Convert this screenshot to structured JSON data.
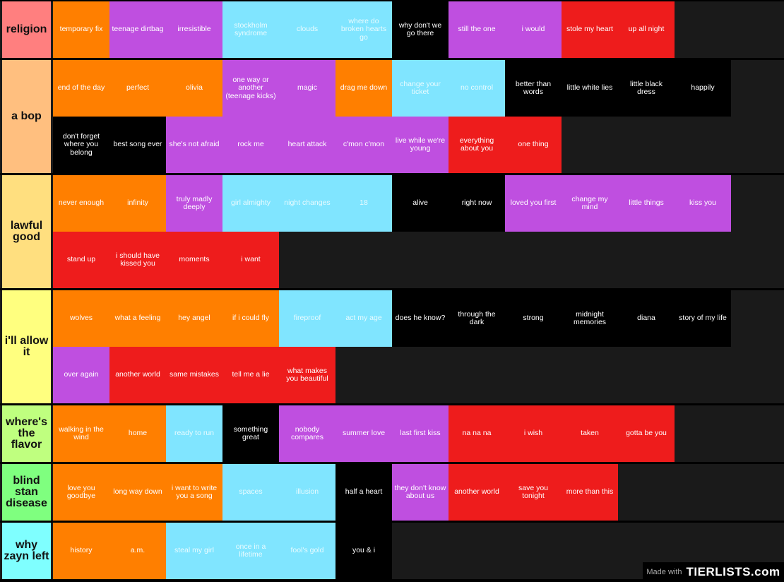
{
  "colors": {
    "orange": "#ff7f00",
    "purple": "#bf4fe0",
    "cyan": "#80e5ff",
    "black": "#000000",
    "red": "#ee1c1c",
    "row_bg": "#1a1a1a"
  },
  "tiers": [
    {
      "label": "religion",
      "color": "#ff7f7f",
      "items": [
        {
          "text": "temporary fix",
          "color": "orange"
        },
        {
          "text": "teenage dirtbag",
          "color": "purple"
        },
        {
          "text": "irresistible",
          "color": "purple"
        },
        {
          "text": "stockholm syndrome",
          "color": "cyan"
        },
        {
          "text": "clouds",
          "color": "cyan"
        },
        {
          "text": "where do broken hearts go",
          "color": "cyan"
        },
        {
          "text": "why don't we go there",
          "color": "black"
        },
        {
          "text": "still the one",
          "color": "purple"
        },
        {
          "text": "i would",
          "color": "purple"
        },
        {
          "text": "stole my heart",
          "color": "red"
        },
        {
          "text": "up all night",
          "color": "red"
        }
      ]
    },
    {
      "label": "a bop",
      "color": "#ffbf7f",
      "items": [
        {
          "text": "end of the day",
          "color": "orange"
        },
        {
          "text": "perfect",
          "color": "orange"
        },
        {
          "text": "olivia",
          "color": "orange"
        },
        {
          "text": "one way or another (teenage kicks)",
          "color": "purple"
        },
        {
          "text": "magic",
          "color": "purple"
        },
        {
          "text": "drag me down",
          "color": "orange"
        },
        {
          "text": "change your ticket",
          "color": "cyan"
        },
        {
          "text": "no control",
          "color": "cyan"
        },
        {
          "text": "better than words",
          "color": "black"
        },
        {
          "text": "little white lies",
          "color": "black"
        },
        {
          "text": "little black dress",
          "color": "black"
        },
        {
          "text": "happily",
          "color": "black"
        },
        {
          "text": "don't forget where you belong",
          "color": "black"
        },
        {
          "text": "best song ever",
          "color": "black"
        },
        {
          "text": "she's not afraid",
          "color": "purple"
        },
        {
          "text": "rock me",
          "color": "purple"
        },
        {
          "text": "heart attack",
          "color": "purple"
        },
        {
          "text": "c'mon c'mon",
          "color": "purple"
        },
        {
          "text": "live while we're young",
          "color": "purple"
        },
        {
          "text": "everything about you",
          "color": "red"
        },
        {
          "text": "one thing",
          "color": "red"
        }
      ]
    },
    {
      "label": "lawful good",
      "color": "#ffdf7f",
      "items": [
        {
          "text": "never enough",
          "color": "orange"
        },
        {
          "text": "infinity",
          "color": "orange"
        },
        {
          "text": "truly madly deeply",
          "color": "purple"
        },
        {
          "text": "girl almighty",
          "color": "cyan"
        },
        {
          "text": "night changes",
          "color": "cyan"
        },
        {
          "text": "18",
          "color": "cyan"
        },
        {
          "text": "alive",
          "color": "black"
        },
        {
          "text": "right now",
          "color": "black"
        },
        {
          "text": "loved you first",
          "color": "purple"
        },
        {
          "text": "change my mind",
          "color": "purple"
        },
        {
          "text": "little things",
          "color": "purple"
        },
        {
          "text": "kiss you",
          "color": "purple"
        },
        {
          "text": "stand up",
          "color": "red"
        },
        {
          "text": "i should have kissed you",
          "color": "red"
        },
        {
          "text": "moments",
          "color": "red"
        },
        {
          "text": "i want",
          "color": "red"
        }
      ]
    },
    {
      "label": "i'll allow it",
      "color": "#ffff7f",
      "items": [
        {
          "text": "wolves",
          "color": "orange"
        },
        {
          "text": "what a feeling",
          "color": "orange"
        },
        {
          "text": "hey angel",
          "color": "orange"
        },
        {
          "text": "if i could fly",
          "color": "orange"
        },
        {
          "text": "fireproof",
          "color": "cyan"
        },
        {
          "text": "act my age",
          "color": "cyan"
        },
        {
          "text": "does he know?",
          "color": "black"
        },
        {
          "text": "through the dark",
          "color": "black"
        },
        {
          "text": "strong",
          "color": "black"
        },
        {
          "text": "midnight memories",
          "color": "black"
        },
        {
          "text": "diana",
          "color": "black"
        },
        {
          "text": "story of my life",
          "color": "black"
        },
        {
          "text": "over again",
          "color": "purple"
        },
        {
          "text": "another world",
          "color": "red"
        },
        {
          "text": "same mistakes",
          "color": "red"
        },
        {
          "text": "tell me a lie",
          "color": "red"
        },
        {
          "text": "what makes you beautiful",
          "color": "red"
        }
      ]
    },
    {
      "label": "where's the flavor",
      "color": "#bfff7f",
      "items": [
        {
          "text": "walking in the wind",
          "color": "orange"
        },
        {
          "text": "home",
          "color": "orange"
        },
        {
          "text": "ready to run",
          "color": "cyan"
        },
        {
          "text": "something great",
          "color": "black"
        },
        {
          "text": "nobody compares",
          "color": "purple"
        },
        {
          "text": "summer love",
          "color": "purple"
        },
        {
          "text": "last first kiss",
          "color": "purple"
        },
        {
          "text": "na na na",
          "color": "red"
        },
        {
          "text": "i wish",
          "color": "red"
        },
        {
          "text": "taken",
          "color": "red"
        },
        {
          "text": "gotta be you",
          "color": "red"
        }
      ]
    },
    {
      "label": "blind stan disease",
      "color": "#7fff7f",
      "items": [
        {
          "text": "love you goodbye",
          "color": "orange"
        },
        {
          "text": "long way down",
          "color": "orange"
        },
        {
          "text": "i want to write you a song",
          "color": "orange"
        },
        {
          "text": "spaces",
          "color": "cyan"
        },
        {
          "text": "illusion",
          "color": "cyan"
        },
        {
          "text": "half a heart",
          "color": "black"
        },
        {
          "text": "they don't know about us",
          "color": "purple"
        },
        {
          "text": "another world",
          "color": "red"
        },
        {
          "text": "save you tonight",
          "color": "red"
        },
        {
          "text": "more than this",
          "color": "red"
        }
      ]
    },
    {
      "label": "why zayn left",
      "color": "#7fffff",
      "items": [
        {
          "text": "history",
          "color": "orange"
        },
        {
          "text": "a.m.",
          "color": "orange"
        },
        {
          "text": "steal my girl",
          "color": "cyan"
        },
        {
          "text": "once in a lifetime",
          "color": "cyan"
        },
        {
          "text": "fool's gold",
          "color": "cyan"
        },
        {
          "text": "you & i",
          "color": "black"
        }
      ]
    }
  ],
  "watermark": {
    "made_with": "Made with",
    "brand": "TIERLISTS.com"
  }
}
